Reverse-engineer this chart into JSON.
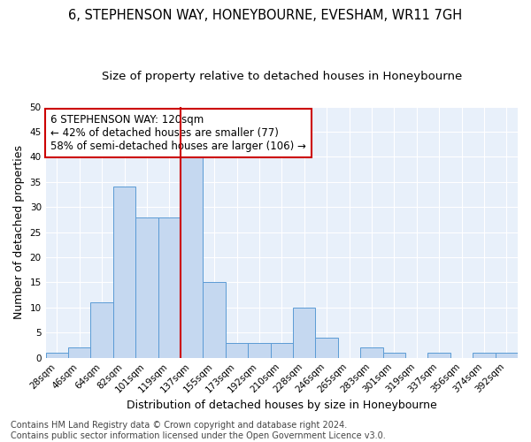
{
  "title1": "6, STEPHENSON WAY, HONEYBOURNE, EVESHAM, WR11 7GH",
  "title2": "Size of property relative to detached houses in Honeybourne",
  "xlabel": "Distribution of detached houses by size in Honeybourne",
  "ylabel": "Number of detached properties",
  "bin_labels": [
    "28sqm",
    "46sqm",
    "64sqm",
    "82sqm",
    "101sqm",
    "119sqm",
    "137sqm",
    "155sqm",
    "173sqm",
    "192sqm",
    "210sqm",
    "228sqm",
    "246sqm",
    "265sqm",
    "283sqm",
    "301sqm",
    "319sqm",
    "337sqm",
    "356sqm",
    "374sqm",
    "392sqm"
  ],
  "bar_values": [
    1,
    2,
    11,
    34,
    28,
    28,
    40,
    15,
    3,
    3,
    3,
    10,
    4,
    0,
    2,
    1,
    0,
    1,
    0,
    1,
    1
  ],
  "bar_color": "#c5d8f0",
  "bar_edge_color": "#5b9bd5",
  "vline_x": 5.5,
  "vline_color": "#cc0000",
  "annotation_text": "6 STEPHENSON WAY: 120sqm\n← 42% of detached houses are smaller (77)\n58% of semi-detached houses are larger (106) →",
  "annotation_box_color": "#ffffff",
  "annotation_box_edge": "#cc0000",
  "ylim": [
    0,
    50
  ],
  "yticks": [
    0,
    5,
    10,
    15,
    20,
    25,
    30,
    35,
    40,
    45,
    50
  ],
  "background_color": "#e8f0fa",
  "grid_color": "#ffffff",
  "fig_background": "#ffffff",
  "footer1": "Contains HM Land Registry data © Crown copyright and database right 2024.",
  "footer2": "Contains public sector information licensed under the Open Government Licence v3.0.",
  "title1_fontsize": 10.5,
  "title2_fontsize": 9.5,
  "xlabel_fontsize": 9,
  "ylabel_fontsize": 9,
  "tick_fontsize": 7.5,
  "annotation_fontsize": 8.5,
  "footer_fontsize": 7
}
